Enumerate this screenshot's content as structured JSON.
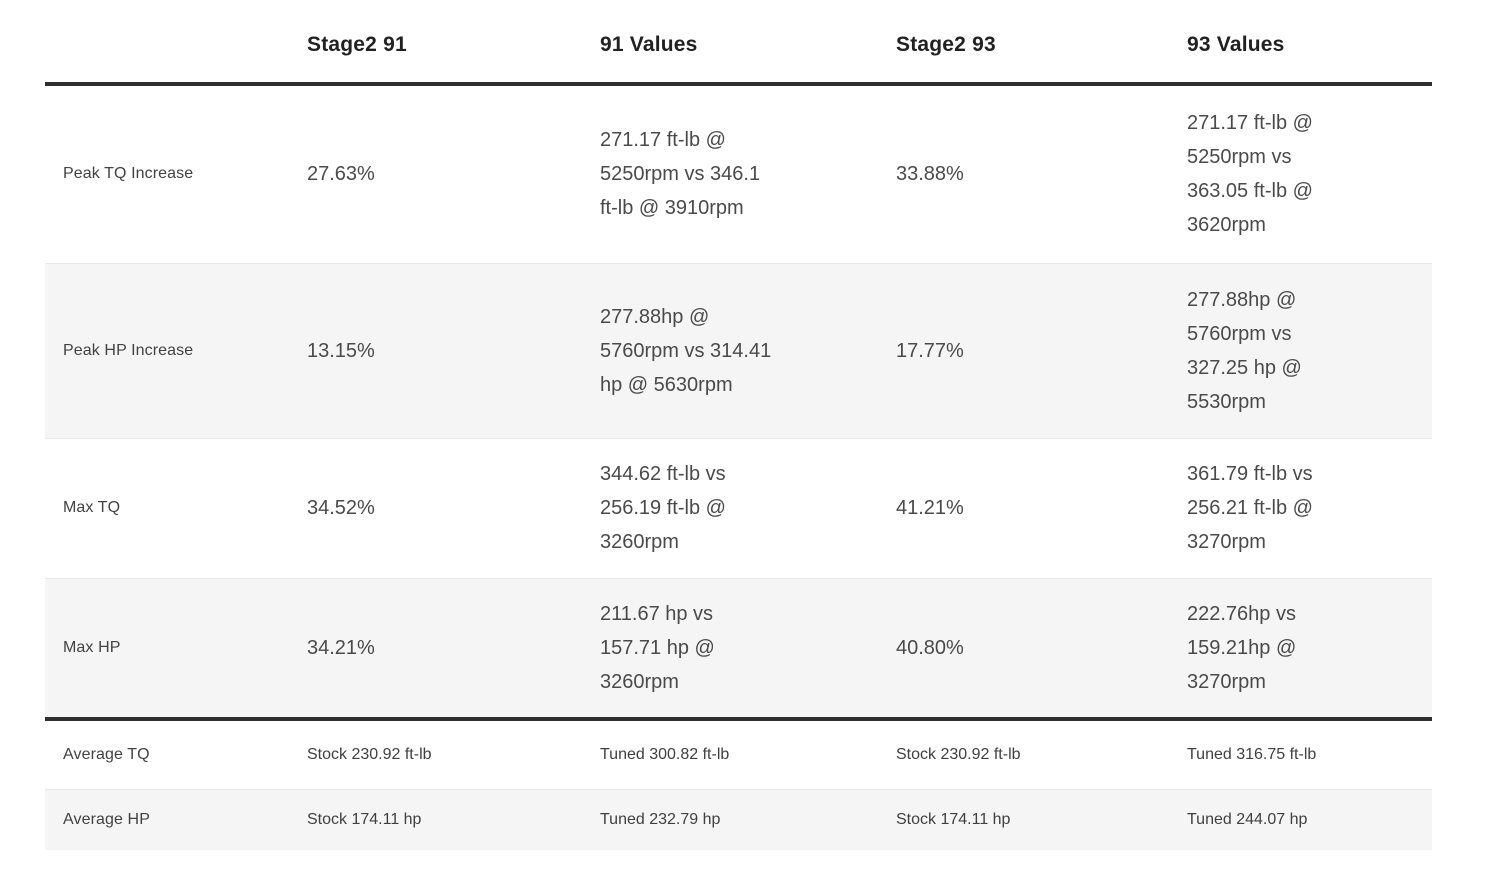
{
  "colors": {
    "background": "#ffffff",
    "alt_row_background": "#f5f5f5",
    "thick_border": "#2f2f2f",
    "thin_border": "#e8e8e8",
    "header_text": "#212121",
    "body_text": "#4a4a4a",
    "label_text": "#424242"
  },
  "table": {
    "columns": [
      "",
      "Stage2 91",
      "91 Values",
      "Stage2 93",
      "93 Values"
    ],
    "rows": [
      {
        "cells": [
          "Peak TQ Increase",
          "27.63%",
          "271.17 ft-lb @\n5250rpm vs 346.1\nft-lb @ 3910rpm",
          "33.88%",
          "271.17 ft-lb @\n5250rpm vs\n363.05 ft-lb @\n3620rpm"
        ]
      },
      {
        "cells": [
          "Peak HP Increase",
          "13.15%",
          "277.88hp @\n5760rpm vs 314.41\nhp @ 5630rpm",
          "17.77%",
          "277.88hp @\n5760rpm vs\n327.25 hp @\n5530rpm"
        ]
      },
      {
        "cells": [
          "Max TQ",
          "34.52%",
          "344.62 ft-lb vs\n256.19 ft-lb @\n3260rpm",
          "41.21%",
          "361.79 ft-lb vs\n256.21 ft-lb @\n3270rpm"
        ]
      },
      {
        "cells": [
          "Max HP",
          "34.21%",
          "211.67 hp vs\n157.71 hp @\n3260rpm",
          "40.80%",
          "222.76hp vs\n159.21hp @\n3270rpm"
        ]
      },
      {
        "cells": [
          "Average TQ",
          "Stock 230.92 ft-lb",
          "Tuned 300.82 ft-lb",
          "Stock 230.92 ft-lb",
          "Tuned 316.75 ft-lb"
        ]
      },
      {
        "cells": [
          "Average HP",
          "Stock 174.11 hp",
          "Tuned 232.79 hp",
          "Stock 174.11 hp",
          "Tuned 244.07 hp"
        ]
      }
    ]
  },
  "chart_data": {
    "type": "table",
    "columns": [
      "",
      "Stage2 91",
      "91 Values",
      "Stage2 93",
      "93 Values"
    ],
    "rows": [
      [
        "Peak TQ Increase",
        "27.63%",
        "271.17 ft-lb @ 5250rpm vs 346.1 ft-lb @ 3910rpm",
        "33.88%",
        "271.17 ft-lb @ 5250rpm vs 363.05 ft-lb @ 3620rpm"
      ],
      [
        "Peak HP Increase",
        "13.15%",
        "277.88hp @ 5760rpm vs 314.41 hp @ 5630rpm",
        "17.77%",
        "277.88hp @ 5760rpm vs 327.25 hp @ 5530rpm"
      ],
      [
        "Max TQ",
        "34.52%",
        "344.62 ft-lb vs 256.19 ft-lb @ 3260rpm",
        "41.21%",
        "361.79 ft-lb vs 256.21 ft-lb @ 3270rpm"
      ],
      [
        "Max HP",
        "34.21%",
        "211.67 hp vs 157.71 hp @ 3260rpm",
        "40.80%",
        "222.76hp vs 159.21hp @ 3270rpm"
      ],
      [
        "Average TQ",
        "Stock 230.92 ft-lb",
        "Tuned 300.82 ft-lb",
        "Stock 230.92 ft-lb",
        "Tuned 316.75 ft-lb"
      ],
      [
        "Average HP",
        "Stock 174.11 hp",
        "Tuned 232.79 hp",
        "Stock 174.11 hp",
        "Tuned 244.07 hp"
      ]
    ],
    "notes": {
      "percent_values": {
        "stage2_91": [
          27.63,
          13.15,
          34.52,
          34.21
        ],
        "stage2_93": [
          33.88,
          17.77,
          41.21,
          40.8
        ]
      },
      "averages": {
        "stock_tq_ftlb": 230.92,
        "tuned_91_tq_ftlb": 300.82,
        "tuned_93_tq_ftlb": 316.75,
        "stock_hp": 174.11,
        "tuned_91_hp": 232.79,
        "tuned_93_hp": 244.07
      }
    }
  }
}
